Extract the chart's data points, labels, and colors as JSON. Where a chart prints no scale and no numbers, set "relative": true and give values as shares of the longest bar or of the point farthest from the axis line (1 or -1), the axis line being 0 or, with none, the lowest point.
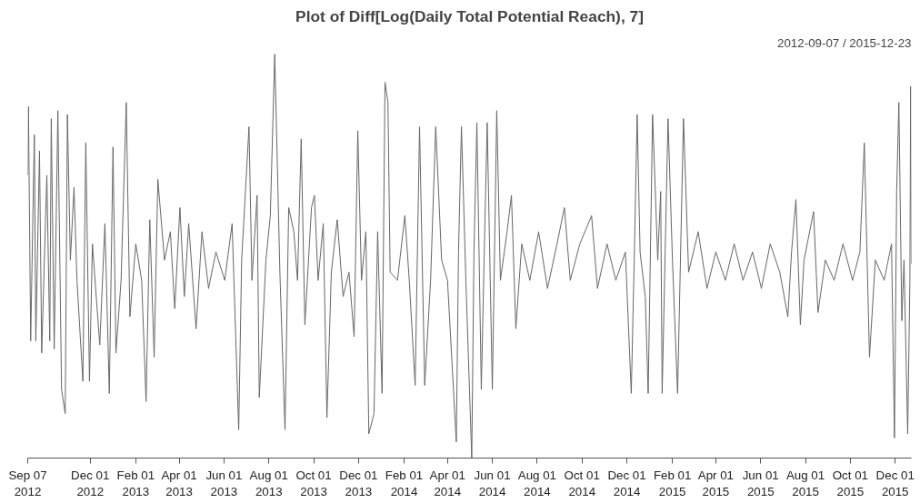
{
  "chart_data": {
    "type": "line",
    "title": "Plot of Diff[Log(Daily Total Potential Reach), 7]",
    "subtitle": "2012-09-07 / 2015-12-23",
    "relative": true,
    "grid": false,
    "tick_labels": "x",
    "line_style": "solid",
    "marker": "none",
    "xlim": [
      "2012-09-07",
      "2015-12-23"
    ],
    "xticks": [
      {
        "value": "2012-09-07",
        "label": "Sep 07\n2012"
      },
      {
        "value": "2012-12-01",
        "label": "Dec 01\n2012"
      },
      {
        "value": "2013-02-01",
        "label": "Feb 01\n2013"
      },
      {
        "value": "2013-04-01",
        "label": "Apr 01\n2013"
      },
      {
        "value": "2013-06-01",
        "label": "Jun 01\n2013"
      },
      {
        "value": "2013-08-01",
        "label": "Aug 01\n2013"
      },
      {
        "value": "2013-10-01",
        "label": "Oct 01\n2013"
      },
      {
        "value": "2013-12-01",
        "label": "Dec 01\n2013"
      },
      {
        "value": "2014-02-01",
        "label": "Feb 01\n2014"
      },
      {
        "value": "2014-04-01",
        "label": "Apr 01\n2014"
      },
      {
        "value": "2014-06-01",
        "label": "Jun 01\n2014"
      },
      {
        "value": "2014-08-01",
        "label": "Aug 01\n2014"
      },
      {
        "value": "2014-10-01",
        "label": "Oct 01\n2014"
      },
      {
        "value": "2014-12-01",
        "label": "Dec 01\n2014"
      },
      {
        "value": "2015-02-01",
        "label": "Feb 01\n2015"
      },
      {
        "value": "2015-04-01",
        "label": "Apr 01\n2015"
      },
      {
        "value": "2015-06-01",
        "label": "Jun 01\n2015"
      },
      {
        "value": "2015-08-01",
        "label": "Aug 01\n2015"
      },
      {
        "value": "2015-10-01",
        "label": "Oct 01\n2015"
      },
      {
        "value": "2015-12-01",
        "label": "Dec 01\n2015"
      }
    ],
    "x": [
      "2012-09-07",
      "2012-09-08",
      "2012-09-11",
      "2012-09-16",
      "2012-09-18",
      "2012-09-23",
      "2012-09-26",
      "2012-10-03",
      "2012-10-07",
      "2012-10-09",
      "2012-10-13",
      "2012-10-18",
      "2012-10-23",
      "2012-10-28",
      "2012-10-31",
      "2012-11-04",
      "2012-11-09",
      "2012-11-13",
      "2012-11-21",
      "2012-11-25",
      "2012-11-30",
      "2012-12-04",
      "2012-12-14",
      "2012-12-21",
      "2012-12-27",
      "2013-01-01",
      "2013-01-05",
      "2013-01-12",
      "2013-01-19",
      "2013-01-24",
      "2013-02-01",
      "2013-02-09",
      "2013-02-15",
      "2013-02-20",
      "2013-02-26",
      "2013-03-03",
      "2013-03-12",
      "2013-03-20",
      "2013-03-26",
      "2013-04-02",
      "2013-04-08",
      "2013-04-14",
      "2013-04-24",
      "2013-05-02",
      "2013-05-11",
      "2013-05-21",
      "2013-06-02",
      "2013-06-12",
      "2013-06-21",
      "2013-06-25",
      "2013-07-05",
      "2013-07-09",
      "2013-07-16",
      "2013-07-19",
      "2013-07-28",
      "2013-08-03",
      "2013-08-09",
      "2013-08-16",
      "2013-08-23",
      "2013-08-28",
      "2013-09-04",
      "2013-09-09",
      "2013-09-14",
      "2013-09-19",
      "2013-09-28",
      "2013-10-02",
      "2013-10-07",
      "2013-10-14",
      "2013-10-19",
      "2013-10-25",
      "2013-11-02",
      "2013-11-10",
      "2013-11-18",
      "2013-11-25",
      "2013-11-30",
      "2013-12-05",
      "2013-12-11",
      "2013-12-15",
      "2013-12-22",
      "2013-12-27",
      "2014-01-02",
      "2014-01-06",
      "2014-01-10",
      "2014-01-13",
      "2014-01-23",
      "2014-02-02",
      "2014-02-08",
      "2014-02-16",
      "2014-02-22",
      "2014-03-01",
      "2014-03-09",
      "2014-03-16",
      "2014-03-24",
      "2014-04-01",
      "2014-04-13",
      "2014-04-16",
      "2014-04-20",
      "2014-04-26",
      "2014-05-04",
      "2014-05-07",
      "2014-05-11",
      "2014-05-17",
      "2014-05-21",
      "2014-05-25",
      "2014-06-01",
      "2014-06-07",
      "2014-06-12",
      "2014-06-21",
      "2014-06-27",
      "2014-07-03",
      "2014-07-11",
      "2014-07-22",
      "2014-08-03",
      "2014-08-15",
      "2014-08-28",
      "2014-09-07",
      "2014-09-15",
      "2014-09-28",
      "2014-10-14",
      "2014-10-22",
      "2014-11-04",
      "2014-11-16",
      "2014-11-29",
      "2014-12-07",
      "2014-12-11",
      "2014-12-15",
      "2014-12-19",
      "2014-12-26",
      "2014-12-30",
      "2015-01-05",
      "2015-01-12",
      "2015-01-16",
      "2015-01-18",
      "2015-01-26",
      "2015-02-01",
      "2015-02-08",
      "2015-02-16",
      "2015-02-23",
      "2015-03-08",
      "2015-03-20",
      "2015-04-01",
      "2015-04-14",
      "2015-04-26",
      "2015-05-08",
      "2015-05-21",
      "2015-06-02",
      "2015-06-14",
      "2015-06-27",
      "2015-07-08",
      "2015-07-13",
      "2015-07-19",
      "2015-07-25",
      "2015-07-30",
      "2015-08-12",
      "2015-08-18",
      "2015-08-28",
      "2015-09-09",
      "2015-09-21",
      "2015-10-04",
      "2015-10-14",
      "2015-10-20",
      "2015-10-27",
      "2015-11-04",
      "2015-11-16",
      "2015-11-26",
      "2015-11-30",
      "2015-12-03",
      "2015-12-06",
      "2015-12-10",
      "2015-12-13",
      "2015-12-18",
      "2015-12-21",
      "2015-12-22",
      "2015-12-23"
    ],
    "series": [
      {
        "color": "#666666",
        "values": [
          0.7,
          0.87,
          0.29,
          0.8,
          0.29,
          0.76,
          0.26,
          0.7,
          0.29,
          0.84,
          0.27,
          0.86,
          0.17,
          0.11,
          0.85,
          0.49,
          0.67,
          0.44,
          0.19,
          0.78,
          0.19,
          0.53,
          0.28,
          0.58,
          0.16,
          0.77,
          0.26,
          0.44,
          0.88,
          0.35,
          0.53,
          0.44,
          0.14,
          0.59,
          0.25,
          0.69,
          0.49,
          0.56,
          0.37,
          0.62,
          0.4,
          0.58,
          0.32,
          0.56,
          0.42,
          0.51,
          0.44,
          0.58,
          0.07,
          0.49,
          0.82,
          0.44,
          0.65,
          0.15,
          0.49,
          0.6,
          1.0,
          0.46,
          0.07,
          0.62,
          0.56,
          0.44,
          0.79,
          0.33,
          0.62,
          0.65,
          0.44,
          0.58,
          0.1,
          0.46,
          0.59,
          0.4,
          0.46,
          0.3,
          0.81,
          0.44,
          0.56,
          0.06,
          0.11,
          0.56,
          0.16,
          0.93,
          0.88,
          0.46,
          0.44,
          0.6,
          0.44,
          0.18,
          0.82,
          0.18,
          0.44,
          0.82,
          0.49,
          0.44,
          0.04,
          0.51,
          0.82,
          0.44,
          0.0,
          0.51,
          0.83,
          0.17,
          0.51,
          0.83,
          0.17,
          0.86,
          0.44,
          0.56,
          0.65,
          0.32,
          0.53,
          0.44,
          0.56,
          0.42,
          0.53,
          0.62,
          0.44,
          0.53,
          0.6,
          0.42,
          0.53,
          0.44,
          0.51,
          0.16,
          0.49,
          0.85,
          0.51,
          0.4,
          0.16,
          0.85,
          0.49,
          0.66,
          0.16,
          0.84,
          0.49,
          0.16,
          0.84,
          0.46,
          0.56,
          0.42,
          0.51,
          0.44,
          0.53,
          0.44,
          0.51,
          0.42,
          0.53,
          0.46,
          0.35,
          0.51,
          0.64,
          0.33,
          0.49,
          0.61,
          0.36,
          0.49,
          0.44,
          0.53,
          0.44,
          0.51,
          0.78,
          0.25,
          0.49,
          0.44,
          0.53,
          0.05,
          0.66,
          0.88,
          0.34,
          0.49,
          0.06,
          0.44,
          0.92,
          0.48
        ]
      }
    ]
  }
}
